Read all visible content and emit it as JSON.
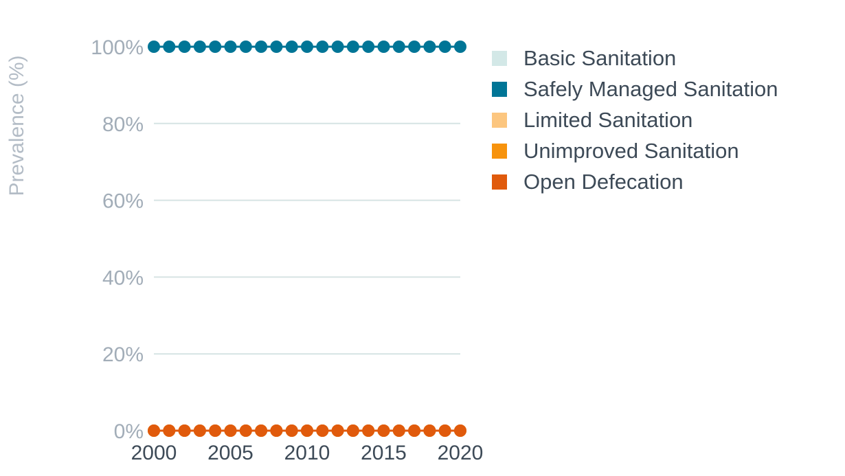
{
  "chart_data": {
    "type": "line",
    "title": "",
    "xlabel": "",
    "ylabel": "Prevalence (%)",
    "x": [
      2000,
      2001,
      2002,
      2003,
      2004,
      2005,
      2006,
      2007,
      2008,
      2009,
      2010,
      2011,
      2012,
      2013,
      2014,
      2015,
      2016,
      2017,
      2018,
      2019,
      2020
    ],
    "xticks": [
      "2000",
      "2005",
      "2010",
      "2015",
      "2020"
    ],
    "xtick_values": [
      2000,
      2005,
      2010,
      2015,
      2020
    ],
    "ylim": [
      0,
      100
    ],
    "yticks": [
      "0%",
      "20%",
      "40%",
      "60%",
      "80%",
      "100%"
    ],
    "ytick_values": [
      0,
      20,
      40,
      60,
      80,
      100
    ],
    "grid": true,
    "legend_position": "right",
    "series": [
      {
        "name": "Basic Sanitation",
        "color": "#d3e8e7",
        "values": [
          0,
          0,
          0,
          0,
          0,
          0,
          0,
          0,
          0,
          0,
          0,
          0,
          0,
          0,
          0,
          0,
          0,
          0,
          0,
          0,
          0
        ]
      },
      {
        "name": "Safely Managed Sanitation",
        "color": "#007596",
        "values": [
          100,
          100,
          100,
          100,
          100,
          100,
          100,
          100,
          100,
          100,
          100,
          100,
          100,
          100,
          100,
          100,
          100,
          100,
          100,
          100,
          100
        ]
      },
      {
        "name": "Limited Sanitation",
        "color": "#fcc67f",
        "values": [
          0,
          0,
          0,
          0,
          0,
          0,
          0,
          0,
          0,
          0,
          0,
          0,
          0,
          0,
          0,
          0,
          0,
          0,
          0,
          0,
          0
        ]
      },
      {
        "name": "Unimproved Sanitation",
        "color": "#f7930d",
        "values": [
          0,
          0,
          0,
          0,
          0,
          0,
          0,
          0,
          0,
          0,
          0,
          0,
          0,
          0,
          0,
          0,
          0,
          0,
          0,
          0,
          0
        ]
      },
      {
        "name": "Open Defecation",
        "color": "#e05a0c",
        "values": [
          0,
          0,
          0,
          0,
          0,
          0,
          0,
          0,
          0,
          0,
          0,
          0,
          0,
          0,
          0,
          0,
          0,
          0,
          0,
          0,
          0
        ]
      }
    ]
  }
}
